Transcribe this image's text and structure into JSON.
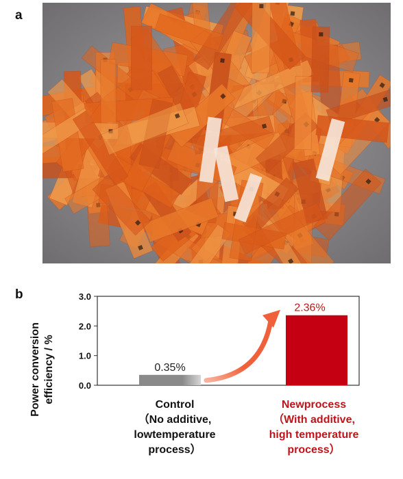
{
  "panels": {
    "a_label": "a",
    "b_label": "b"
  },
  "photo": {
    "description_icon": "photo-of-orange-film-strips"
  },
  "chart_data": {
    "type": "bar",
    "ylabel_line1": "Power conversion",
    "ylabel_line2": "efficiency / %",
    "ylim": [
      0,
      3.0
    ],
    "yticks": [
      "0.0",
      "1.0",
      "2.0",
      "3.0"
    ],
    "ytick_values": [
      0,
      1,
      2,
      3
    ],
    "categories": [
      {
        "lines": [
          "Control",
          "（No additive,",
          "lowtemperature",
          "process）"
        ],
        "color": "#111111"
      },
      {
        "lines": [
          "Newprocess",
          "（With additive,",
          "high temperature",
          "process）"
        ],
        "color": "#c0141b"
      }
    ],
    "values": [
      0.35,
      2.36
    ],
    "value_labels": [
      "0.35%",
      "2.36%"
    ],
    "bar_colors": [
      "#8a8a8a",
      "#c40012"
    ],
    "label_colors": [
      "#222222",
      "#c0141b"
    ],
    "arrow_color": "#f0603a"
  }
}
